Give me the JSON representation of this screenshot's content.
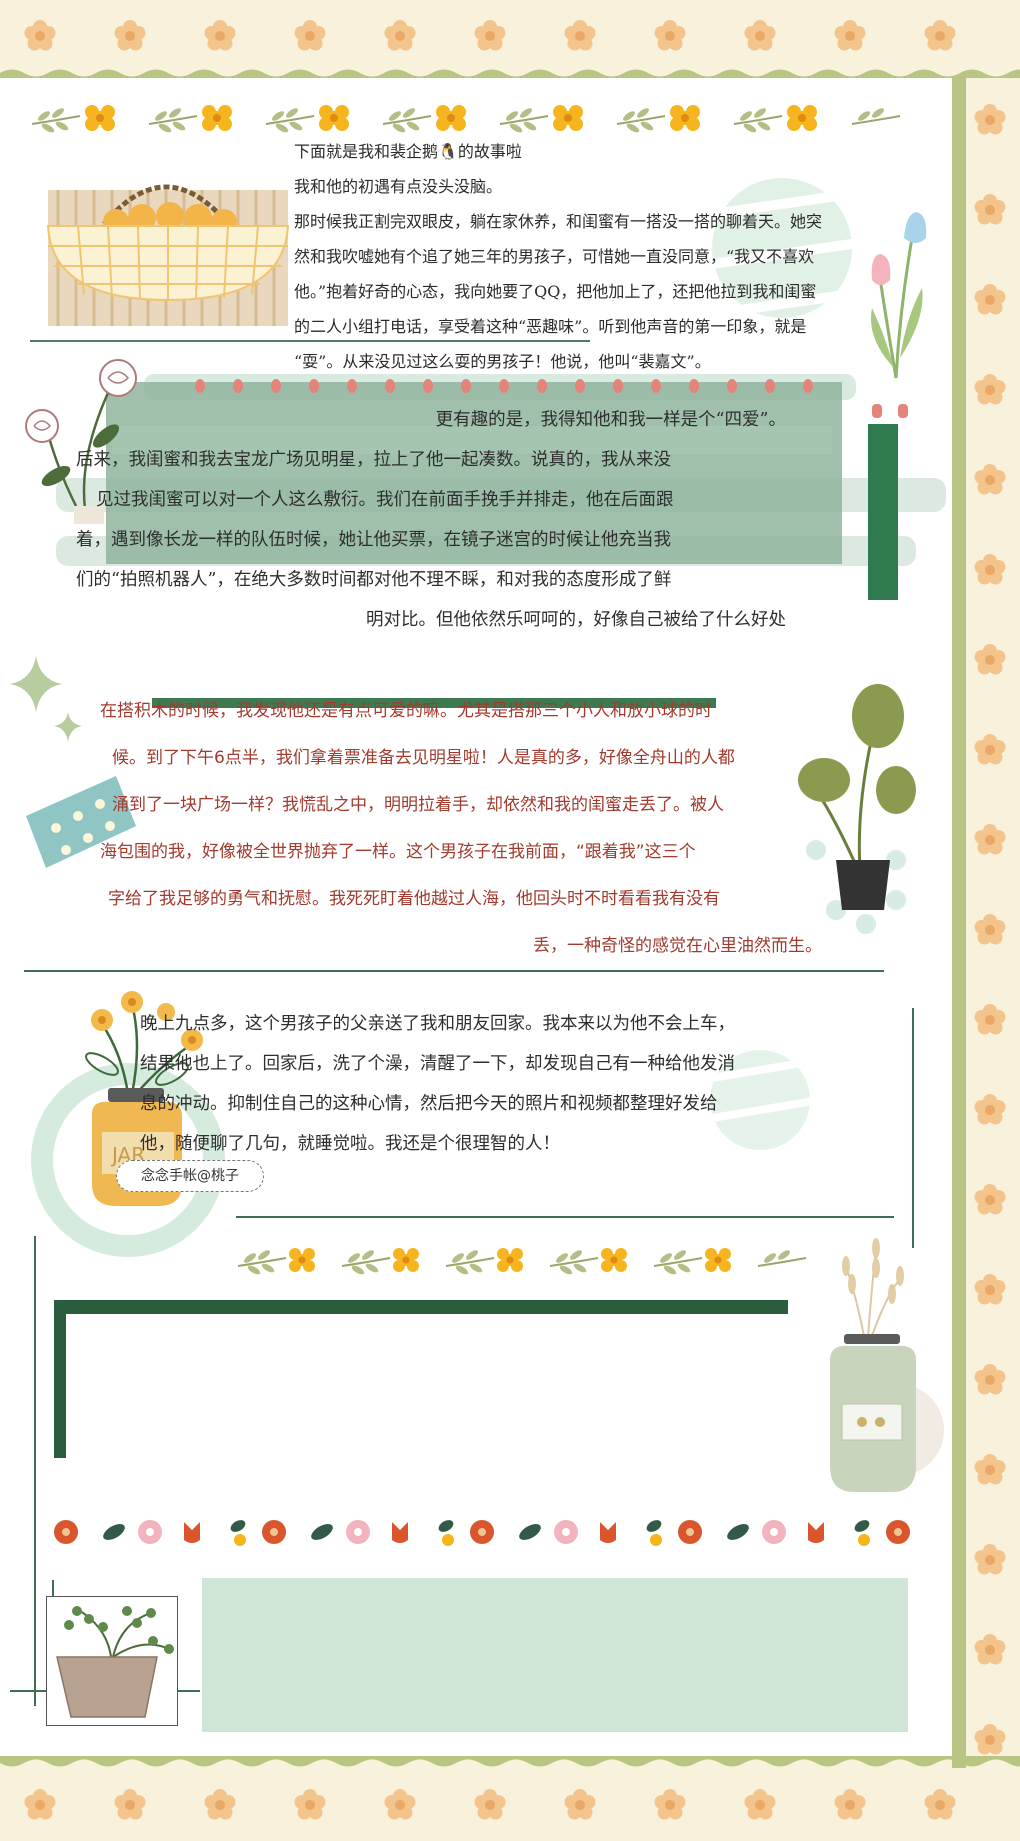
{
  "colors": {
    "cream": "#f8f2dc",
    "border_green": "#b9c583",
    "flower_orange": "#f3c48c",
    "dark_green": "#2d6a48",
    "mint": "#cfe6d6",
    "hand_red": "#a23a2e"
  },
  "section1": {
    "lines": [
      "下面就是我和裴企鹅🐧的故事啦",
      "我和他的初遇有点没头没脑。",
      "那时候我正割完双眼皮，躺在家休养，和闺蜜有一搭没一搭的聊着天。她突",
      "然和我吹嘘她有个追了她三年的男孩子，可惜她一直没同意，“我又不喜欢",
      "他。”抱着好奇的心态，我向她要了QQ，把他加上了，还把他拉到我和闺蜜",
      "的二人小组打电话，享受着这种“恶趣味”。听到他声音的第一印象，就是",
      "“耍”。从来没见过这么耍的男孩子！他说，他叫“裴嘉文”。"
    ]
  },
  "section2": {
    "lines": [
      "更有趣的是，我得知他和我一样是个“四爱”。",
      "后来，我闺蜜和我去宝龙广场见明星，拉上了他一起凑数。说真的，我从来没",
      "见过我闺蜜可以对一个人这么敷衍。我们在前面手挽手并排走，他在后面跟",
      "着，遇到像长龙一样的队伍时候，她让他买票，在镜子迷宫的时候让他充当我",
      "们的“拍照机器人”，在绝大多数时间都对他不理不睬，和对我的态度形成了鲜",
      "明对比。但他依然乐呵呵的，好像自己被给了什么好处"
    ]
  },
  "section3": {
    "lines": [
      "在搭积木的时候，我发现他还是有点可爱的嘛。尤其是搭那三个小人和放小球的时",
      "候。到了下午6点半，我们拿着票准备去见明星啦！人是真的多，好像全舟山的人都",
      "涌到了一块广场一样？我慌乱之中，明明拉着手，却依然和我的闺蜜走丢了。被人",
      "海包围的我，好像被全世界抛弃了一样。这个男孩子在我前面，“跟着我”这三个",
      "字给了我足够的勇气和抚慰。我死死盯着他越过人海，他回头时不时看看我有没有",
      "丢，一种奇怪的感觉在心里油然而生。"
    ]
  },
  "section4": {
    "lines": [
      "晚上九点多，这个男孩子的父亲送了我和朋友回家。我本来以为他不会上车，",
      "结果他也上了。回家后，洗了个澡，清醒了一下，却发现自己有一种给他发消",
      "息的冲动。抑制住自己的这种心情，然后把今天的照片和视频都整理好发给",
      "他，随便聊了几句，就睡觉啦。我还是个很理智的人！"
    ]
  },
  "signature": "念念手帐@桃子",
  "jar_label": "JAR"
}
